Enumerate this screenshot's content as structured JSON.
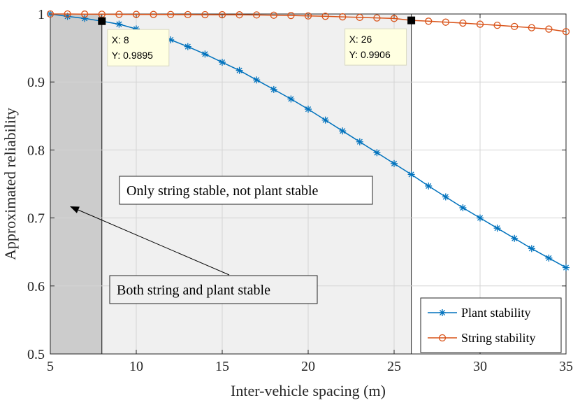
{
  "chart_data": {
    "type": "line",
    "xlabel": "Inter-vehicle spacing (m)",
    "ylabel": "Approximated reliability",
    "xlim": [
      5,
      35
    ],
    "ylim": [
      0.5,
      1
    ],
    "xticks": [
      5,
      10,
      15,
      20,
      25,
      30,
      35
    ],
    "yticks": [
      0.5,
      0.6,
      0.7,
      0.8,
      0.9,
      1
    ],
    "ytick_labels": [
      "0.5",
      "0.6",
      "0.7",
      "0.8",
      "0.9",
      "1"
    ],
    "grid": true,
    "legend_position": "bottom-right",
    "x": [
      5,
      6,
      7,
      8,
      9,
      10,
      11,
      12,
      13,
      14,
      15,
      16,
      17,
      18,
      19,
      20,
      21,
      22,
      23,
      24,
      25,
      26,
      27,
      28,
      29,
      30,
      31,
      32,
      33,
      34,
      35
    ],
    "series": [
      {
        "name": "Plant stability",
        "marker": "asterisk",
        "color": "#0072BD",
        "values": [
          1.0,
          0.9965,
          0.9935,
          0.9895,
          0.985,
          0.978,
          0.97,
          0.962,
          0.952,
          0.941,
          0.929,
          0.917,
          0.903,
          0.889,
          0.875,
          0.86,
          0.844,
          0.828,
          0.812,
          0.796,
          0.78,
          0.764,
          0.747,
          0.731,
          0.715,
          0.7,
          0.685,
          0.67,
          0.655,
          0.641,
          0.627
        ]
      },
      {
        "name": "String stability",
        "marker": "circle",
        "color": "#D95319",
        "values": [
          1.0,
          1.0,
          0.9998,
          0.9996,
          0.9995,
          0.9994,
          0.9993,
          0.9992,
          0.9991,
          0.999,
          0.9989,
          0.9988,
          0.9986,
          0.9982,
          0.9978,
          0.9972,
          0.9966,
          0.9958,
          0.995,
          0.9942,
          0.9934,
          0.9906,
          0.9894,
          0.988,
          0.9866,
          0.985,
          0.9834,
          0.9816,
          0.9798,
          0.9778,
          0.974
        ]
      }
    ],
    "regions": [
      {
        "x_range": [
          5,
          8
        ],
        "fill": "#cccccc"
      },
      {
        "x_range": [
          8,
          26
        ],
        "fill": "#f0f0f0"
      }
    ],
    "datatips": [
      {
        "x": 8,
        "y": 0.9895,
        "x_text": "X: 8",
        "y_text": "Y: 0.9895"
      },
      {
        "x": 26,
        "y": 0.9906,
        "x_text": "X: 26",
        "y_text": "Y: 0.9906"
      }
    ],
    "annotations": [
      {
        "text": "Only string stable, not plant stable"
      },
      {
        "text": "Both string and plant stable"
      }
    ]
  }
}
